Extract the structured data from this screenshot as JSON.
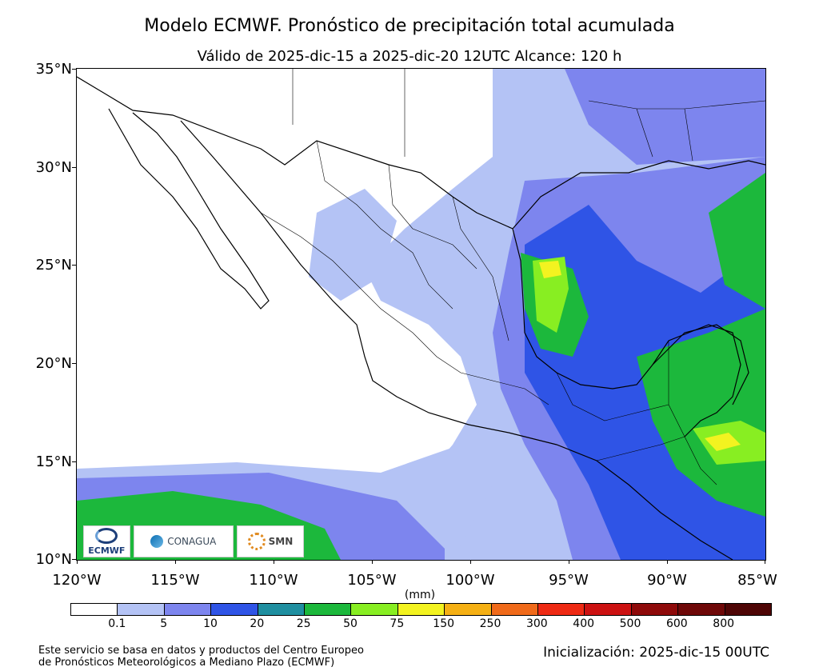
{
  "title": "Modelo ECMWF. Pronóstico de precipitación total acumulada",
  "subtitle": "Válido de 2025-dic-15 a 2025-dic-20 12UTC   Alcance: 120 h",
  "axes": {
    "lat_labels": [
      "35°N",
      "30°N",
      "25°N",
      "20°N",
      "15°N",
      "10°N"
    ],
    "lon_labels": [
      "120°W",
      "115°W",
      "110°W",
      "105°W",
      "100°W",
      "95°W",
      "90°W",
      "85°W"
    ]
  },
  "colorbar": {
    "unit": "(mm)",
    "labels": [
      "0.1",
      "5",
      "10",
      "20",
      "25",
      "50",
      "75",
      "150",
      "250",
      "300",
      "400",
      "500",
      "600",
      "800"
    ],
    "colors": [
      "#ffffff",
      "#b4c3f5",
      "#7d85ee",
      "#2f54e6",
      "#1f8fa0",
      "#1cb83c",
      "#88ee22",
      "#f3f320",
      "#f5b014",
      "#f06a1a",
      "#ee2a14",
      "#cc1111",
      "#8e0a0a",
      "#6e0808",
      "#4e0505"
    ]
  },
  "logos": {
    "ecmwf": "ECMWF",
    "conagua": "CONAGUA",
    "smn": "SMN"
  },
  "footer": {
    "left_line1": "Este servicio se basa en datos y productos del Centro Europeo",
    "left_line2": "de Pronósticos Meteorológicos a Mediano Plazo (ECMWF)",
    "right": "Inicialización: 2025-dic-15 00UTC"
  }
}
